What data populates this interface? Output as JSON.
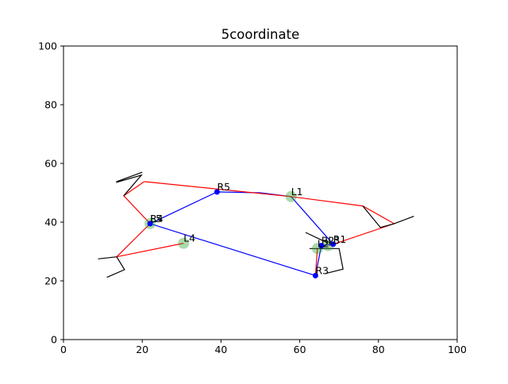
{
  "chart_data": {
    "type": "scatter",
    "title": "5coordinate",
    "xlabel": "",
    "ylabel": "",
    "xlim": [
      0,
      100
    ],
    "ylim": [
      0,
      100
    ],
    "x_ticks": [
      0,
      20,
      40,
      60,
      80,
      100
    ],
    "y_ticks": [
      0,
      20,
      40,
      60,
      80,
      100
    ],
    "grid": false,
    "colors": {
      "blue": "#0000ff",
      "red": "#ff0000",
      "black": "#000000",
      "green": "#2ca02c"
    },
    "points": [
      {
        "label": "L1",
        "x": 57.8,
        "y": 48.7,
        "style": "green"
      },
      {
        "label": "L4",
        "x": 30.5,
        "y": 32.8,
        "style": "green"
      },
      {
        "label": "L2",
        "x": 64.5,
        "y": 31.0,
        "style": "green"
      },
      {
        "label": "L5",
        "x": 22.0,
        "y": 39.5,
        "style": "green"
      },
      {
        "label": "L3",
        "x": 67.2,
        "y": 32.0,
        "style": "green"
      },
      {
        "label": "R5",
        "x": 39.0,
        "y": 50.3,
        "style": "blue"
      },
      {
        "label": "R4",
        "x": 22.0,
        "y": 39.5,
        "style": "blue"
      },
      {
        "label": "R3",
        "x": 64.0,
        "y": 21.8,
        "style": "blue"
      },
      {
        "label": "R2",
        "x": 65.5,
        "y": 32.0,
        "style": "blue"
      },
      {
        "label": "R1",
        "x": 68.5,
        "y": 32.5,
        "style": "blue"
      }
    ],
    "series": [
      {
        "color": "blue",
        "x": [
          39.0,
          50.0,
          57.8,
          68.5,
          65.5,
          64.0,
          22.0,
          39.0
        ],
        "y": [
          50.3,
          50.0,
          48.7,
          32.5,
          32.0,
          21.8,
          39.5,
          50.3
        ]
      },
      {
        "color": "red",
        "x": [
          20.5,
          15.3,
          22.0,
          13.5,
          30.5
        ],
        "y": [
          53.8,
          49.0,
          39.5,
          28.2,
          32.8
        ]
      },
      {
        "color": "red",
        "x": [
          20.5,
          57.8,
          76.0,
          84.0,
          67.5
        ],
        "y": [
          53.8,
          48.7,
          45.5,
          39.5,
          32.0
        ]
      },
      {
        "color": "red",
        "x": [
          64.5,
          64.0
        ],
        "y": [
          31.0,
          21.8
        ]
      },
      {
        "color": "black",
        "x": [
          15.3,
          19.8,
          13.5,
          13.5,
          20.0
        ],
        "y": [
          49.0,
          56.0,
          53.6,
          53.8,
          57.0
        ]
      },
      {
        "color": "black",
        "x": [
          13.5,
          8.8
        ],
        "y": [
          28.2,
          27.5
        ]
      },
      {
        "color": "black",
        "x": [
          13.5,
          15.5,
          11.0
        ],
        "y": [
          28.2,
          23.8,
          21.2
        ]
      },
      {
        "color": "black",
        "x": [
          76.0,
          80.5,
          84.0,
          89.0
        ],
        "y": [
          45.5,
          38.2,
          39.5,
          42.0
        ]
      },
      {
        "color": "black",
        "x": [
          61.5,
          67.0
        ],
        "y": [
          36.5,
          33.0
        ]
      },
      {
        "color": "black",
        "x": [
          62.5,
          70.0,
          71.0,
          66.5
        ],
        "y": [
          31.0,
          31.0,
          24.0,
          22.5
        ]
      }
    ]
  }
}
